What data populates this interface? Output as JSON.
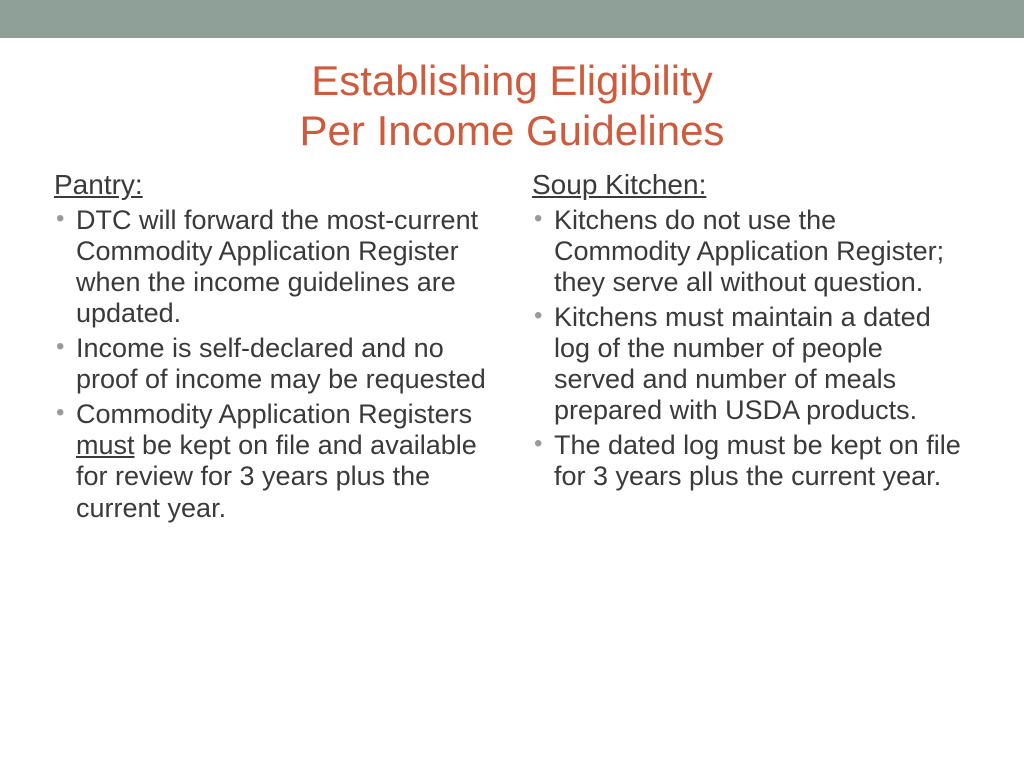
{
  "colors": {
    "topBar": "#8fa098",
    "title": "#cf5b3e",
    "body": "#3a3a3a",
    "bullet": "#9a9a9a",
    "background": "#ffffff"
  },
  "typography": {
    "titleFontSize": 42,
    "headingFontSize": 28,
    "bodyFontSize": 27,
    "fontFamily": "Arial"
  },
  "title": {
    "line1": "Establishing Eligibility",
    "line2": "Per Income Guidelines"
  },
  "left": {
    "heading": "Pantry:",
    "items": [
      "DTC will forward the most-current Commodity Application Register when the income guidelines are updated.",
      "Income is self-declared and no proof of income may be requested",
      "Commodity Application Registers ",
      " be kept on file and available for review for 3 years plus the current year."
    ],
    "item3_underline": "must"
  },
  "right": {
    "heading": "Soup Kitchen:",
    "items": [
      "Kitchens do not use the Commodity Application Register; they serve all without question.",
      "Kitchens must maintain a dated log of the number of people served and number of meals prepared with USDA products.",
      "The dated log must be kept on file for 3 years plus the current year."
    ]
  }
}
